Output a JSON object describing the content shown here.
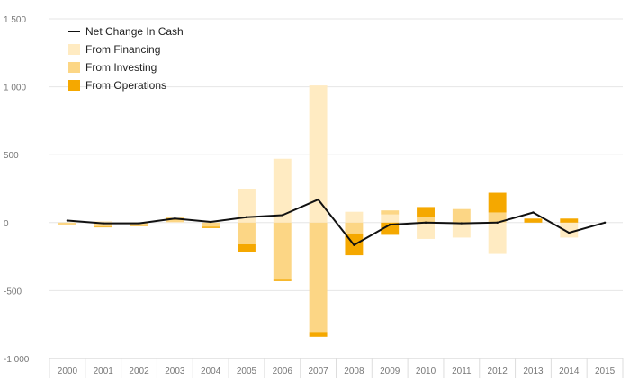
{
  "chart_data": {
    "type": "bar",
    "categories": [
      "2000",
      "2001",
      "2002",
      "2003",
      "2004",
      "2005",
      "2006",
      "2007",
      "2008",
      "2009",
      "2010",
      "2011",
      "2012",
      "2013",
      "2014",
      "2015"
    ],
    "ylim": [
      -1000,
      1500
    ],
    "yticks": [
      -1000,
      -500,
      0,
      500,
      1000,
      1500
    ],
    "ytick_labels": [
      "-1 000",
      "-500",
      "0",
      "500",
      "1 000",
      "1 500"
    ],
    "grid": true,
    "legend_position": "top-left",
    "series": [
      {
        "name": "From Financing",
        "kind": "bar",
        "color": "#FFEBC2",
        "values": [
          0,
          10,
          0,
          5,
          0,
          250,
          470,
          1010,
          80,
          60,
          -120,
          -110,
          -230,
          0,
          -110,
          0
        ]
      },
      {
        "name": "From Investing",
        "kind": "bar",
        "color": "#FCD685",
        "values": [
          -15,
          -30,
          -15,
          15,
          -30,
          -160,
          -420,
          -810,
          -80,
          30,
          45,
          100,
          75,
          0,
          0,
          0
        ]
      },
      {
        "name": "From Operations",
        "kind": "bar",
        "color": "#F5A800",
        "values": [
          -5,
          -5,
          -10,
          15,
          -10,
          -55,
          -10,
          -30,
          -160,
          -90,
          70,
          0,
          145,
          30,
          30,
          0
        ]
      },
      {
        "name": "Net Change In Cash",
        "kind": "line",
        "color": "#111111",
        "values": [
          15,
          -5,
          -5,
          30,
          5,
          40,
          55,
          170,
          -165,
          -15,
          0,
          -5,
          0,
          75,
          -75,
          0
        ]
      }
    ],
    "legend": [
      {
        "name": "Net Change In Cash",
        "symbol": "line",
        "color": "#111111"
      },
      {
        "name": "From Financing",
        "symbol": "box",
        "color": "#FFEBC2"
      },
      {
        "name": "From Investing",
        "symbol": "box",
        "color": "#FCD685"
      },
      {
        "name": "From Operations",
        "symbol": "box",
        "color": "#F5A800"
      }
    ]
  }
}
